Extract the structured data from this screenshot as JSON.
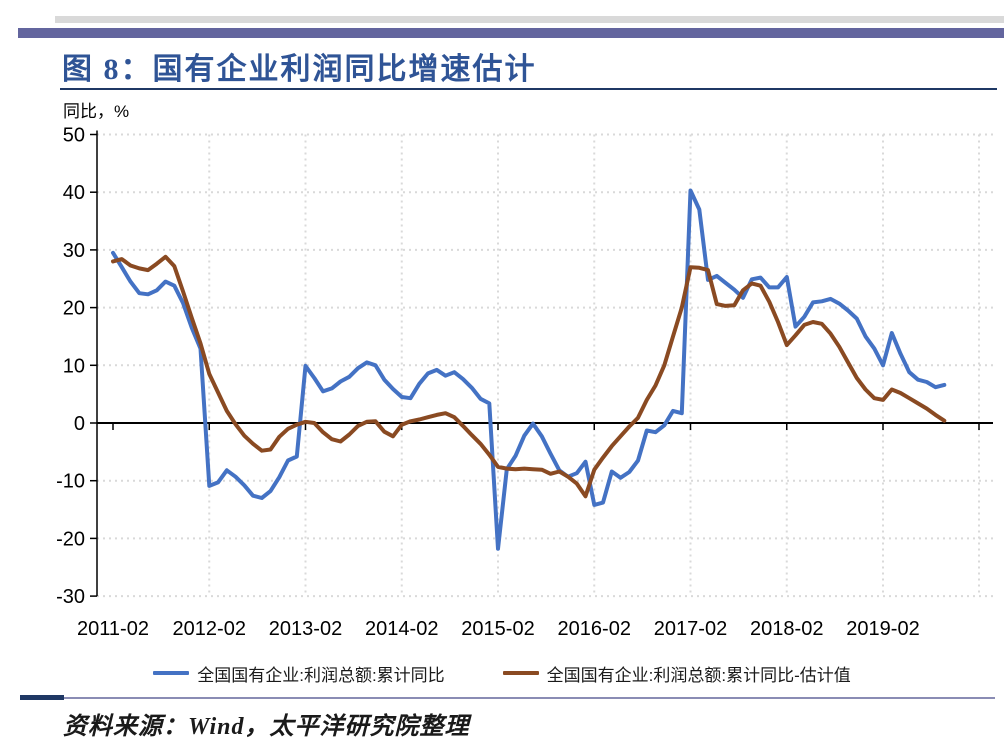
{
  "header": {
    "figure_title": "图 8：国有企业利润同比增速估计"
  },
  "axis": {
    "y_unit_label": "同比，%"
  },
  "chart_data": {
    "type": "line",
    "title": "国有企业利润同比增速估计",
    "ylabel": "同比，%",
    "xlabel": "",
    "ylim": [
      -30,
      50
    ],
    "ytick_step": 10,
    "grid": "dotted",
    "legend_position": "bottom",
    "xticks": [
      "2011-02",
      "2012-02",
      "2013-02",
      "2014-02",
      "2015-02",
      "2016-02",
      "2017-02",
      "2018-02",
      "2019-02"
    ],
    "categories": [
      "2011-02",
      "2011-03",
      "2011-04",
      "2011-05",
      "2011-06",
      "2011-07",
      "2011-08",
      "2011-09",
      "2011-10",
      "2011-11",
      "2011-12",
      "2012-02",
      "2012-03",
      "2012-04",
      "2012-05",
      "2012-06",
      "2012-07",
      "2012-08",
      "2012-09",
      "2012-10",
      "2012-11",
      "2012-12",
      "2013-02",
      "2013-03",
      "2013-04",
      "2013-05",
      "2013-06",
      "2013-07",
      "2013-08",
      "2013-09",
      "2013-10",
      "2013-11",
      "2013-12",
      "2014-02",
      "2014-03",
      "2014-04",
      "2014-05",
      "2014-06",
      "2014-07",
      "2014-08",
      "2014-09",
      "2014-10",
      "2014-11",
      "2014-12",
      "2015-02",
      "2015-03",
      "2015-04",
      "2015-05",
      "2015-06",
      "2015-07",
      "2015-08",
      "2015-09",
      "2015-10",
      "2015-11",
      "2015-12",
      "2016-02",
      "2016-03",
      "2016-04",
      "2016-05",
      "2016-06",
      "2016-07",
      "2016-08",
      "2016-09",
      "2016-10",
      "2016-11",
      "2016-12",
      "2017-02",
      "2017-03",
      "2017-04",
      "2017-05",
      "2017-06",
      "2017-07",
      "2017-08",
      "2017-09",
      "2017-10",
      "2017-11",
      "2017-12",
      "2018-02",
      "2018-03",
      "2018-04",
      "2018-05",
      "2018-06",
      "2018-07",
      "2018-08",
      "2018-09",
      "2018-10",
      "2018-11",
      "2018-12",
      "2019-02",
      "2019-03",
      "2019-04",
      "2019-05",
      "2019-06",
      "2019-07",
      "2019-08",
      "2019-09"
    ],
    "series": [
      {
        "name": "全国国有企业:利润总额:累计同比",
        "color": "#4472c4",
        "values": [
          29.5,
          27.0,
          24.5,
          22.5,
          22.3,
          23.0,
          24.5,
          23.8,
          20.8,
          16.5,
          12.9,
          -10.9,
          -10.3,
          -8.2,
          -9.3,
          -10.8,
          -12.6,
          -13.0,
          -11.8,
          -9.4,
          -6.5,
          -5.8,
          9.9,
          7.8,
          5.5,
          6.0,
          7.2,
          8.0,
          9.5,
          10.5,
          10.0,
          7.5,
          5.9,
          4.5,
          4.3,
          6.8,
          8.6,
          9.2,
          8.2,
          8.8,
          7.6,
          6.1,
          4.2,
          3.4,
          -21.8,
          -8.0,
          -5.7,
          -2.2,
          -0.1,
          -2.3,
          -5.3,
          -8.2,
          -9.3,
          -8.7,
          -6.7,
          -14.2,
          -13.8,
          -8.4,
          -9.5,
          -8.5,
          -6.5,
          -1.3,
          -1.6,
          -0.4,
          2.1,
          1.7,
          40.3,
          37.0,
          24.8,
          25.5,
          24.3,
          23.1,
          21.7,
          24.9,
          25.2,
          23.5,
          23.5,
          25.3,
          16.7,
          18.4,
          20.9,
          21.1,
          21.5,
          20.7,
          19.5,
          18.1,
          15.0,
          12.9,
          10.0,
          15.6,
          12.0,
          8.8,
          7.5,
          7.1,
          6.2,
          6.6
        ]
      },
      {
        "name": "全国国有企业:利润总额:累计同比-估计值",
        "color": "#8a4a22",
        "values": [
          28.0,
          28.4,
          27.3,
          26.8,
          26.5,
          27.6,
          28.8,
          27.2,
          22.8,
          18.2,
          13.8,
          8.5,
          5.3,
          2.1,
          -0.2,
          -2.2,
          -3.6,
          -4.8,
          -4.6,
          -2.4,
          -1.0,
          -0.3,
          0.2,
          0.0,
          -1.6,
          -2.8,
          -3.2,
          -2.0,
          -0.5,
          0.2,
          0.3,
          -1.5,
          -2.3,
          -0.3,
          0.3,
          0.6,
          1.0,
          1.4,
          1.7,
          1.0,
          -0.5,
          -2.1,
          -3.6,
          -5.5,
          -7.6,
          -7.9,
          -8.0,
          -7.9,
          -8.0,
          -8.1,
          -8.8,
          -8.4,
          -9.3,
          -10.5,
          -12.7,
          -8.1,
          -6.0,
          -4.0,
          -2.3,
          -0.6,
          0.9,
          4.0,
          6.5,
          10.0,
          15.0,
          20.0,
          27.0,
          26.9,
          26.5,
          20.6,
          20.3,
          20.4,
          23.0,
          24.2,
          23.8,
          21.0,
          17.5,
          13.5,
          15.2,
          17.0,
          17.5,
          17.2,
          15.5,
          13.2,
          10.5,
          7.8,
          5.8,
          4.3,
          4.0,
          5.8,
          5.2,
          4.3,
          3.4,
          2.5,
          1.4,
          0.4
        ]
      }
    ]
  },
  "footer": {
    "source": "资料来源：Wind，太平洋研究院整理"
  },
  "colors": {
    "accent_bar": "#63659e",
    "title_blue": "#2f5496",
    "underline_navy": "#1f3864",
    "gridline_gray": "#d9d9d9",
    "series_blue": "#4472c4",
    "series_brown": "#8a4a22"
  }
}
